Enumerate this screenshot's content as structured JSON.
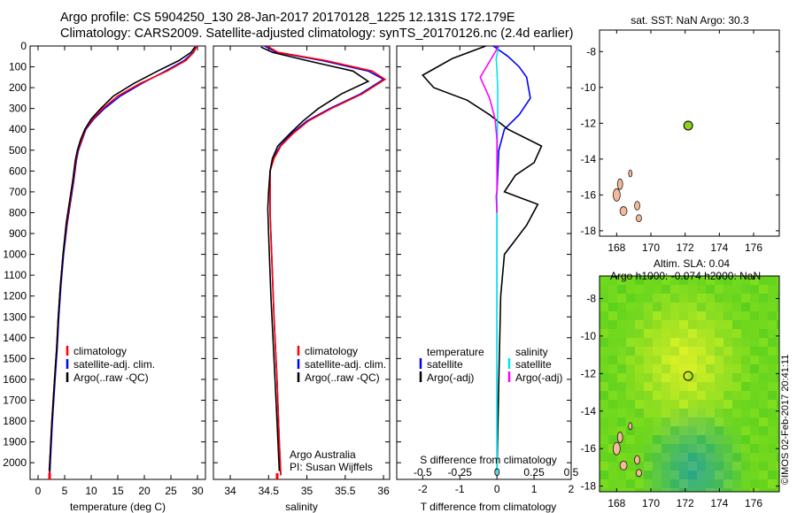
{
  "header": {
    "title_line1": "Argo profile: CS 5904250_130 28-Jan-2017 20170128_1225 12.131S 172.179E",
    "title_line2": "Climatology: CARS2009. Satellite-adjusted climatology: synTS_20170126.nc (2.4d earlier)"
  },
  "stamp": "©IMOS 02-Feb-2017 20:41:11",
  "colors": {
    "climatology": "#ff0000",
    "satellite": "#0000ff",
    "argo": "#000000",
    "sal_satellite": "#00e5ee",
    "sal_argo": "#ff00ff",
    "land": "#f4b89a"
  },
  "chart_data": [
    {
      "type": "line",
      "xlabel": "temperature (deg C)",
      "xticks": [
        0,
        5,
        10,
        15,
        20,
        25,
        30
      ],
      "xlim": [
        -1.5,
        31.5
      ],
      "yticks": [
        0,
        100,
        200,
        300,
        400,
        500,
        600,
        700,
        800,
        900,
        1000,
        1100,
        1200,
        1300,
        1400,
        1500,
        1600,
        1700,
        1800,
        1900,
        2000
      ],
      "ylim": [
        2080,
        0
      ],
      "legend": [
        "climatology",
        "satellite-adj. clim.",
        "Argo(..raw -QC)"
      ],
      "series": [
        {
          "name": "satellite-adj. clim.",
          "color": "#0000ff",
          "x": [
            29.8,
            29.2,
            27.5,
            24.0,
            19.5,
            15.5,
            12.5,
            10.5,
            9.0,
            8.3,
            7.6,
            7.2,
            6.7,
            6.1,
            5.5,
            4.8,
            4.3,
            3.9,
            3.6,
            3.2,
            2.7,
            2.4,
            2.2
          ],
          "y": [
            0,
            30,
            70,
            120,
            180,
            240,
            300,
            350,
            400,
            450,
            500,
            550,
            650,
            750,
            850,
            1000,
            1150,
            1300,
            1450,
            1600,
            1800,
            1950,
            2060
          ]
        },
        {
          "name": "climatology",
          "color": "#ff0000",
          "x": [
            29.9,
            29.3,
            27.8,
            24.3,
            19.2,
            15.0,
            12.2,
            10.3,
            8.9,
            8.2,
            7.5,
            7.1,
            6.6,
            6.0,
            5.4,
            4.7,
            4.2,
            3.8,
            3.5,
            3.1,
            2.6,
            2.3,
            2.1
          ],
          "y": [
            0,
            30,
            70,
            120,
            180,
            240,
            300,
            350,
            400,
            450,
            500,
            550,
            650,
            750,
            850,
            1000,
            1150,
            1300,
            1450,
            1600,
            1800,
            1950,
            2060
          ]
        },
        {
          "name": "Argo(..raw -QC)",
          "color": "#000000",
          "x": [
            29.5,
            28.8,
            26.5,
            22.5,
            18.0,
            14.2,
            11.8,
            10.0,
            8.8,
            8.0,
            7.4,
            7.0,
            6.5,
            5.9,
            5.3,
            4.7,
            4.2,
            3.8,
            3.5,
            3.1,
            2.6,
            2.3,
            2.1
          ],
          "y": [
            5,
            30,
            70,
            120,
            180,
            240,
            300,
            350,
            400,
            450,
            500,
            550,
            650,
            750,
            850,
            1000,
            1150,
            1300,
            1450,
            1600,
            1800,
            1950,
            2040
          ]
        }
      ]
    },
    {
      "type": "line",
      "xlabel": "salinity",
      "xticks": [
        34,
        34.5,
        35,
        35.5,
        36
      ],
      "xlim": [
        33.78,
        36.08
      ],
      "legend": [
        "climatology",
        "satellite-adj. clim.",
        "Argo(..raw -QC)"
      ],
      "annotation": [
        "Argo Australia",
        "PI: Susan Wijffels"
      ],
      "series": [
        {
          "name": "satellite-adj. clim.",
          "color": "#0000ff",
          "x": [
            34.45,
            34.6,
            35.2,
            35.8,
            36.0,
            35.7,
            35.3,
            35.0,
            34.8,
            34.65,
            34.56,
            34.52,
            34.52,
            34.54,
            34.57,
            34.61,
            34.64,
            34.66
          ],
          "y": [
            0,
            30,
            70,
            120,
            160,
            230,
            300,
            360,
            420,
            480,
            540,
            600,
            800,
            1000,
            1300,
            1600,
            1900,
            2060
          ]
        },
        {
          "name": "climatology",
          "color": "#ff0000",
          "x": [
            34.48,
            34.62,
            35.25,
            35.85,
            36.02,
            35.72,
            35.32,
            35.02,
            34.82,
            34.66,
            34.57,
            34.52,
            34.52,
            34.54,
            34.57,
            34.61,
            34.64,
            34.66
          ],
          "y": [
            0,
            30,
            70,
            120,
            160,
            230,
            300,
            360,
            420,
            480,
            540,
            600,
            800,
            1000,
            1300,
            1600,
            1900,
            2060
          ]
        },
        {
          "name": "Argo(..raw -QC)",
          "color": "#000000",
          "x": [
            34.4,
            34.55,
            35.0,
            35.6,
            35.8,
            35.45,
            35.15,
            34.95,
            34.78,
            34.62,
            34.55,
            34.52,
            34.5,
            34.49,
            34.5,
            34.53,
            34.57,
            34.61,
            34.64
          ],
          "y": [
            5,
            30,
            70,
            120,
            170,
            230,
            300,
            360,
            420,
            480,
            540,
            600,
            700,
            780,
            900,
            1200,
            1500,
            1800,
            2040
          ]
        }
      ]
    },
    {
      "type": "line",
      "xlabel": "T difference from climatology",
      "xlabel2": "S difference from climatology",
      "xticks": [
        -2,
        -1,
        0,
        1,
        2
      ],
      "xlim": [
        -2.7,
        2.0
      ],
      "sticks": [
        "-0.5",
        "-0.25",
        "0",
        "0.25",
        "0.5"
      ],
      "legend_temperature": [
        "temperature",
        "satellite",
        "Argo(-adj)"
      ],
      "legend_salinity": [
        "salinity",
        "satellite",
        "Argo(-adj)"
      ],
      "series": [
        {
          "name": "T satellite",
          "color": "#0000ff",
          "x": [
            -0.1,
            0.3,
            0.6,
            0.8,
            0.9,
            0.6,
            0.2,
            0.05,
            0.0,
            0.0,
            0.0,
            0.0
          ],
          "y": [
            0,
            50,
            100,
            150,
            250,
            330,
            400,
            500,
            700,
            1000,
            1500,
            2060
          ]
        },
        {
          "name": "T Argo(-adj)",
          "color": "#000000",
          "x": [
            -0.3,
            -1.2,
            -2.0,
            -1.7,
            -0.8,
            -0.2,
            0.3,
            1.2,
            1.0,
            0.5,
            0.2,
            1.1,
            0.8,
            0.2,
            0.1,
            0.05,
            0.0
          ],
          "y": [
            0,
            60,
            140,
            200,
            260,
            330,
            400,
            480,
            560,
            620,
            700,
            760,
            860,
            1000,
            1200,
            1600,
            2040
          ]
        },
        {
          "name": "S satellite",
          "color": "#00e5ee",
          "x": [
            0.05,
            -0.02,
            0.0,
            0.02,
            0.02,
            0.01,
            0.0,
            0.0,
            0.0
          ],
          "y": [
            0,
            60,
            120,
            200,
            300,
            450,
            700,
            1200,
            2060
          ]
        },
        {
          "name": "S Argo(-adj)",
          "color": "#ff00ff",
          "x": [
            0.05,
            -0.15,
            -0.45,
            -0.2,
            -0.05,
            0.0,
            0.0,
            -0.02,
            0.0
          ],
          "y": [
            0,
            60,
            150,
            250,
            350,
            450,
            700,
            720,
            800
          ]
        }
      ]
    },
    {
      "type": "scatter",
      "title": "sat. SST: NaN Argo: 30.3",
      "xticks": [
        168,
        170,
        172,
        174,
        176
      ],
      "xlim": [
        167,
        177.5
      ],
      "yticks": [
        -8,
        -10,
        -12,
        -14,
        -16,
        -18
      ],
      "ylim": [
        -6.8,
        -18.3
      ],
      "points": [
        {
          "x": 172.18,
          "y": -12.13
        }
      ]
    },
    {
      "type": "heatmap",
      "title_line1": "Altim. SLA: 0.04",
      "title_line2": "Argo h1000: -0.074 h2000: NaN",
      "xticks": [
        168,
        170,
        172,
        174,
        176
      ],
      "xlim": [
        167,
        177.5
      ],
      "yticks": [
        -8,
        -10,
        -12,
        -14,
        -16,
        -18
      ],
      "ylim": [
        -6.8,
        -18.3
      ],
      "points": [
        {
          "x": 172.18,
          "y": -12.13
        }
      ]
    }
  ]
}
